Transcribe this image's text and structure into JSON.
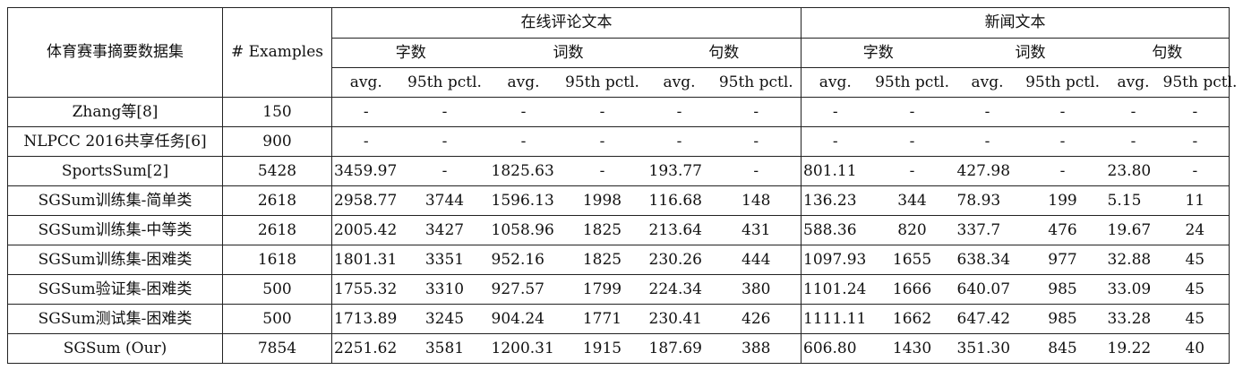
{
  "header": {
    "dataset_col": "体育赛事摘要数据集",
    "examples_col": "# Examples",
    "group_online": "在线评论文本",
    "group_news": "新闻文本",
    "sub_chars": "字数",
    "sub_words": "词数",
    "sub_sents": "句数",
    "avg": "avg.",
    "pctl": "95th pctl."
  },
  "rows": [
    {
      "name": "Zhang等[8]",
      "examples": "150",
      "vals": [
        "-",
        "-",
        "-",
        "-",
        "-",
        "-",
        "-",
        "-",
        "-",
        "-",
        "-",
        "-"
      ]
    },
    {
      "name": "NLPCC 2016共享任务[6]",
      "examples": "900",
      "vals": [
        "-",
        "-",
        "-",
        "-",
        "-",
        "-",
        "-",
        "-",
        "-",
        "-",
        "-",
        "-"
      ]
    },
    {
      "name": "SportsSum[2]",
      "examples": "5428",
      "vals": [
        "3459.97",
        "-",
        "1825.63",
        "-",
        "193.77",
        "-",
        "801.11",
        "-",
        "427.98",
        "-",
        "23.80",
        "-"
      ]
    },
    {
      "name": "SGSum训练集-简单类",
      "examples": "2618",
      "vals": [
        "2958.77",
        "3744",
        "1596.13",
        "1998",
        "116.68",
        "148",
        "136.23",
        "344",
        "78.93",
        "199",
        "5.15",
        "11"
      ]
    },
    {
      "name": "SGSum训练集-中等类",
      "examples": "2618",
      "vals": [
        "2005.42",
        "3427",
        "1058.96",
        "1825",
        "213.64",
        "431",
        "588.36",
        "820",
        "337.7",
        "476",
        "19.67",
        "24"
      ]
    },
    {
      "name": "SGSum训练集-困难类",
      "examples": "1618",
      "vals": [
        "1801.31",
        "3351",
        "952.16",
        "1825",
        "230.26",
        "444",
        "1097.93",
        "1655",
        "638.34",
        "977",
        "32.88",
        "45"
      ]
    },
    {
      "name": "SGSum验证集-困难类",
      "examples": "500",
      "vals": [
        "1755.32",
        "3310",
        "927.57",
        "1799",
        "224.34",
        "380",
        "1101.24",
        "1666",
        "640.07",
        "985",
        "33.09",
        "45"
      ]
    },
    {
      "name": "SGSum测试集-困难类",
      "examples": "500",
      "vals": [
        "1713.89",
        "3245",
        "904.24",
        "1771",
        "230.41",
        "426",
        "1111.11",
        "1662",
        "647.42",
        "985",
        "33.28",
        "45"
      ]
    },
    {
      "name": "SGSum (Our)",
      "examples": "7854",
      "vals": [
        "2251.62",
        "3581",
        "1200.31",
        "1915",
        "187.69",
        "388",
        "606.80",
        "1430",
        "351.30",
        "845",
        "19.22",
        "40"
      ]
    }
  ]
}
